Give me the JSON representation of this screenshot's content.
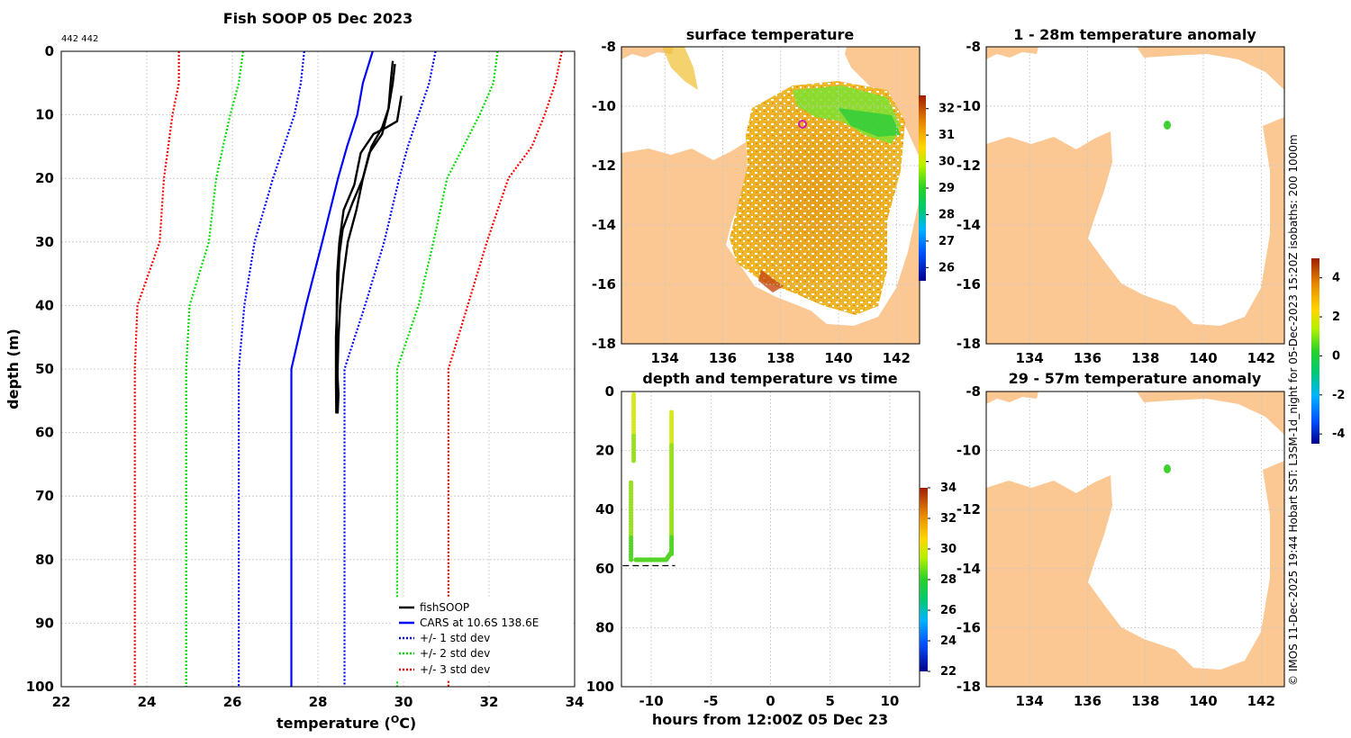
{
  "profile": {
    "title": "Fish SOOP 05 Dec 2023",
    "id_label": "442 442",
    "xlabel": "temperature (",
    "xlabel_unit": "O",
    "xlabel_end": "C)",
    "ylabel": "depth (m)"
  },
  "surface_map": {
    "title": "surface temperature"
  },
  "anomaly_top": {
    "title": "1 - 28m temperature anomaly"
  },
  "anomaly_bottom": {
    "title": "29 - 57m temperature anomaly"
  },
  "timeseries": {
    "title": "depth and temperature vs time",
    "xlabel": "hours from 12:00Z 05 Dec 23"
  },
  "credit": "© IMOS 11-Dec-2025 19:44 Hobart SST: L3SM-1d_night for 05-Dec-2023 15:20Z isobaths: 200  1000m",
  "colors": {
    "fishsoop": "#000000",
    "cars": "#0000ff",
    "std1": "#0000ff",
    "std2": "#00dd00",
    "std3": "#ff0000",
    "land": "#fbc894",
    "marker": "#cc22aa"
  },
  "chart_data": [
    {
      "type": "line",
      "name": "profile",
      "title": "Fish SOOP 05 Dec 2023",
      "xlabel": "temperature (°C)",
      "ylabel": "depth (m)",
      "xlim": [
        22,
        34
      ],
      "ylim": [
        100,
        0
      ],
      "xticks": [
        22,
        24,
        26,
        28,
        30,
        32,
        34
      ],
      "yticks": [
        0,
        10,
        20,
        30,
        40,
        50,
        60,
        70,
        80,
        90,
        100
      ],
      "legend": [
        "fishSOOP",
        "CARS at 10.6S 138.6E",
        "+/- 1 std dev",
        "+/- 2 std dev",
        "+/- 3 std dev"
      ],
      "legend_position": "bottom-right",
      "series": [
        {
          "name": "fishSOOP cast 1",
          "style": "solid",
          "color": "#000000",
          "temp": [
            29.75,
            29.7,
            29.65,
            29.5,
            29.2,
            29.05,
            28.9,
            28.7,
            28.6,
            28.52,
            28.48,
            28.46,
            28.45,
            28.44
          ],
          "depth": [
            1.5,
            5,
            9,
            13,
            16,
            20,
            25,
            30,
            35,
            40,
            45,
            50,
            55,
            57
          ]
        },
        {
          "name": "fishSOOP cast 2",
          "style": "solid",
          "color": "#000000",
          "temp": [
            29.95,
            29.85,
            29.6,
            29.3,
            29.0,
            28.85,
            28.6,
            28.5,
            28.45,
            28.44,
            28.44,
            28.45,
            28.48,
            28.46
          ],
          "depth": [
            7,
            11,
            12,
            13,
            16,
            21,
            25,
            30,
            35,
            40,
            45,
            50,
            54,
            57
          ]
        },
        {
          "name": "fishSOOP cast 3",
          "style": "solid",
          "color": "#000000",
          "temp": [
            29.8,
            29.75,
            29.65,
            29.5,
            29.25,
            29.05,
            28.8,
            28.58,
            28.5,
            28.46,
            28.42,
            28.42,
            28.43
          ],
          "depth": [
            2,
            5,
            9,
            12,
            15,
            20,
            24,
            28,
            32,
            38,
            45,
            52,
            57
          ]
        },
        {
          "name": "CARS at 10.6S 138.6E",
          "style": "solid",
          "color": "#0000ff",
          "temp": [
            29.28,
            29.05,
            28.92,
            28.68,
            28.47,
            28.1,
            27.72,
            27.38,
            27.38
          ],
          "depth": [
            0,
            5,
            10,
            15,
            20,
            30,
            40,
            50,
            100
          ]
        },
        {
          "name": "CARS - 1 std",
          "style": "dotted",
          "color": "#0000ff",
          "temp": [
            27.68,
            27.6,
            27.45,
            27.2,
            26.95,
            26.52,
            26.28,
            26.15,
            26.15
          ],
          "depth": [
            0,
            5,
            10,
            15,
            20,
            30,
            40,
            50,
            100
          ]
        },
        {
          "name": "CARS + 1 std",
          "style": "dotted",
          "color": "#0000ff",
          "temp": [
            30.75,
            30.6,
            30.35,
            30.1,
            29.9,
            29.55,
            29.1,
            28.62,
            28.62
          ],
          "depth": [
            0,
            5,
            10,
            15,
            20,
            30,
            40,
            50,
            100
          ]
        },
        {
          "name": "CARS - 2 std",
          "style": "dotted",
          "color": "#00dd00",
          "temp": [
            26.25,
            26.15,
            25.95,
            25.78,
            25.62,
            25.45,
            25.0,
            24.92,
            24.92
          ],
          "depth": [
            0,
            5,
            10,
            15,
            20,
            30,
            40,
            50,
            100
          ]
        },
        {
          "name": "CARS + 2 std",
          "style": "dotted",
          "color": "#00dd00",
          "temp": [
            32.2,
            32.1,
            31.78,
            31.4,
            31.02,
            30.7,
            30.35,
            29.85,
            29.85
          ],
          "depth": [
            0,
            5,
            10,
            15,
            20,
            30,
            40,
            50,
            100
          ]
        },
        {
          "name": "CARS - 3 std",
          "style": "dotted",
          "color": "#ff0000",
          "temp": [
            24.75,
            24.75,
            24.6,
            24.5,
            24.4,
            24.3,
            23.78,
            23.72,
            23.72
          ],
          "depth": [
            0,
            5,
            10,
            15,
            20,
            30,
            40,
            50,
            100
          ]
        },
        {
          "name": "CARS + 3 std",
          "style": "dotted",
          "color": "#ff0000",
          "temp": [
            33.7,
            33.55,
            33.3,
            33.0,
            32.45,
            31.95,
            31.5,
            31.05,
            31.05
          ],
          "depth": [
            0,
            5,
            10,
            15,
            20,
            30,
            40,
            50,
            100
          ]
        }
      ]
    },
    {
      "type": "heatmap",
      "name": "surface temperature",
      "xlim": [
        132.5,
        142.8
      ],
      "ylim": [
        -18,
        -8
      ],
      "xticks": [
        134,
        136,
        138,
        140,
        142
      ],
      "yticks": [
        -8,
        -10,
        -12,
        -14,
        -16,
        -18
      ],
      "colorbar": {
        "min": 25.5,
        "max": 32.5,
        "ticks": [
          26,
          27,
          28,
          29,
          30,
          31,
          32
        ]
      },
      "marker": {
        "lon": 138.6,
        "lat": -10.6
      }
    },
    {
      "type": "heatmap",
      "name": "1 - 28m temperature anomaly",
      "xlim": [
        132.5,
        142.8
      ],
      "ylim": [
        -18,
        -8
      ],
      "xticks": [
        134,
        136,
        138,
        140,
        142
      ],
      "yticks": [
        -8,
        -10,
        -12,
        -14,
        -16,
        -18
      ],
      "colorbar": {
        "min": -4.5,
        "max": 5,
        "ticks": [
          -4,
          -2,
          0,
          2,
          4
        ]
      },
      "points": [
        {
          "lon": 138.6,
          "lat": -10.65,
          "anomaly": 0.3
        }
      ]
    },
    {
      "type": "heatmap",
      "name": "29 - 57m temperature anomaly",
      "xlim": [
        132.5,
        142.8
      ],
      "ylim": [
        -18,
        -8
      ],
      "xticks": [
        134,
        136,
        138,
        140,
        142
      ],
      "yticks": [
        -8,
        -10,
        -12,
        -14,
        -16,
        -18
      ],
      "points": [
        {
          "lon": 138.6,
          "lat": -10.6,
          "anomaly": 0.3
        }
      ]
    },
    {
      "type": "scatter",
      "name": "depth and temperature vs time",
      "title": "depth and temperature vs time",
      "xlabel": "hours from 12:00Z 05 Dec 23",
      "xlim": [
        -12.5,
        12.5
      ],
      "ylim": [
        100,
        0
      ],
      "xticks": [
        -10,
        -5,
        0,
        5,
        10
      ],
      "yticks": [
        0,
        20,
        40,
        60,
        80,
        100
      ],
      "colorbar": {
        "min": 22,
        "max": 34,
        "ticks": [
          22,
          24,
          26,
          28,
          30,
          32,
          34
        ]
      },
      "bottom_depth_line": 59,
      "casts": [
        {
          "hour_start": -11.7,
          "hour_end": -11.3,
          "depth_max": 57,
          "temp_surface": 29.8,
          "temp_bottom": 28.4
        },
        {
          "hour_start": -11.3,
          "hour_end": -8.3,
          "depth_max": 57,
          "temp_surface": 29.9,
          "temp_bottom": 28.4
        }
      ]
    }
  ]
}
